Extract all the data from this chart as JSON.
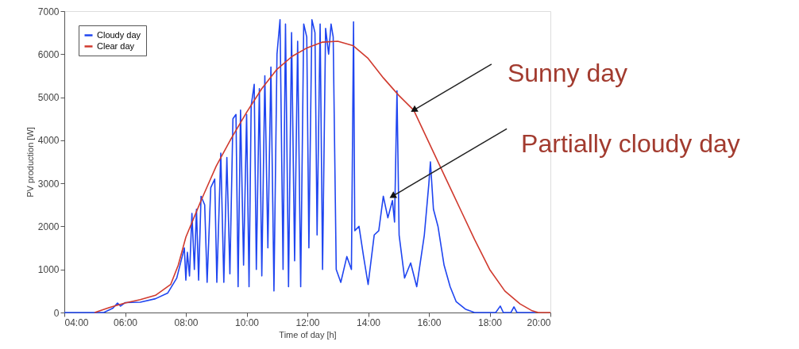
{
  "chart_data": {
    "type": "line",
    "xlabel": "Time of day [h]",
    "ylabel": "PV production [W]",
    "xlim": [
      4,
      20
    ],
    "xticks": [
      {
        "value": 4,
        "label": "04:00"
      },
      {
        "value": 6,
        "label": "06:00"
      },
      {
        "value": 8,
        "label": "08:00"
      },
      {
        "value": 10,
        "label": "10:00"
      },
      {
        "value": 12,
        "label": "12:00"
      },
      {
        "value": 14,
        "label": "14:00"
      },
      {
        "value": 16,
        "label": "16:00"
      },
      {
        "value": 18,
        "label": "18:00"
      },
      {
        "value": 20,
        "label": "20:00"
      }
    ],
    "ylim": [
      0,
      7000
    ],
    "yticks": [
      0,
      1000,
      2000,
      3000,
      4000,
      5000,
      6000,
      7000
    ],
    "grid": false,
    "legend": "top left",
    "marker": "none",
    "line_style": "solid",
    "series": [
      {
        "name": "Cloudy day",
        "color": "#1f45f0",
        "x": [
          4,
          5.3,
          5.6,
          5.75,
          5.85,
          6.0,
          6.5,
          7.0,
          7.4,
          7.7,
          7.95,
          8.0,
          8.05,
          8.12,
          8.2,
          8.28,
          8.35,
          8.42,
          8.5,
          8.62,
          8.7,
          8.82,
          8.95,
          9.02,
          9.15,
          9.25,
          9.35,
          9.45,
          9.55,
          9.65,
          9.72,
          9.8,
          9.9,
          10.0,
          10.08,
          10.15,
          10.25,
          10.32,
          10.42,
          10.5,
          10.6,
          10.7,
          10.8,
          10.9,
          11.0,
          11.1,
          11.2,
          11.28,
          11.38,
          11.48,
          11.58,
          11.68,
          11.78,
          11.88,
          11.98,
          12.05,
          12.15,
          12.25,
          12.32,
          12.42,
          12.5,
          12.6,
          12.7,
          12.78,
          12.85,
          12.95,
          13.1,
          13.3,
          13.45,
          13.52,
          13.56,
          13.7,
          13.85,
          14.0,
          14.2,
          14.35,
          14.5,
          14.65,
          14.8,
          14.87,
          14.95,
          15.02,
          15.2,
          15.4,
          15.6,
          15.85,
          16.0,
          16.05,
          16.15,
          16.3,
          16.5,
          16.7,
          16.9,
          17.2,
          17.5,
          18.2,
          18.35,
          18.45,
          18.7,
          18.8,
          18.9,
          19.5
        ],
        "values": [
          0,
          0,
          100,
          220,
          150,
          230,
          240,
          320,
          450,
          800,
          1500,
          750,
          1400,
          850,
          2300,
          1000,
          2400,
          750,
          2700,
          2500,
          700,
          2900,
          3100,
          700,
          3700,
          700,
          3600,
          900,
          4500,
          4600,
          600,
          4700,
          1100,
          4600,
          600,
          4800,
          5300,
          1000,
          5200,
          850,
          5500,
          1500,
          5700,
          500,
          6000,
          6800,
          1000,
          6700,
          600,
          6500,
          1200,
          6300,
          600,
          6700,
          6400,
          1500,
          6800,
          6500,
          1800,
          6700,
          1000,
          6600,
          6000,
          6700,
          6400,
          1000,
          700,
          1300,
          1000,
          6750,
          1900,
          2000,
          1300,
          650,
          1800,
          1900,
          2700,
          2200,
          2600,
          2100,
          5150,
          1800,
          800,
          1150,
          600,
          1800,
          3000,
          3500,
          2400,
          2000,
          1100,
          600,
          250,
          80,
          0,
          0,
          150,
          0,
          0,
          130,
          0,
          0
        ]
      },
      {
        "name": "Clear day",
        "color": "#d03a2e",
        "x": [
          5,
          5.5,
          6,
          6.5,
          7,
          7.5,
          7.75,
          8,
          8.5,
          9,
          9.5,
          10,
          10.5,
          11,
          11.5,
          12,
          12.5,
          13,
          13.5,
          14,
          14.5,
          15,
          15.5,
          16,
          16.5,
          17,
          17.5,
          18,
          18.5,
          19,
          19.4,
          19.6,
          20
        ],
        "values": [
          0,
          120,
          220,
          300,
          400,
          650,
          1100,
          1750,
          2600,
          3400,
          4050,
          4650,
          5200,
          5650,
          5950,
          6150,
          6280,
          6300,
          6200,
          5900,
          5450,
          5050,
          4700,
          3950,
          3200,
          2450,
          1700,
          1000,
          500,
          200,
          40,
          0,
          0
        ]
      }
    ],
    "annotations": [
      {
        "text": "Sunny day",
        "x": 15.5,
        "y": 4700
      },
      {
        "text": "Partially cloudy day",
        "x": 14.8,
        "y": 2700
      }
    ]
  }
}
